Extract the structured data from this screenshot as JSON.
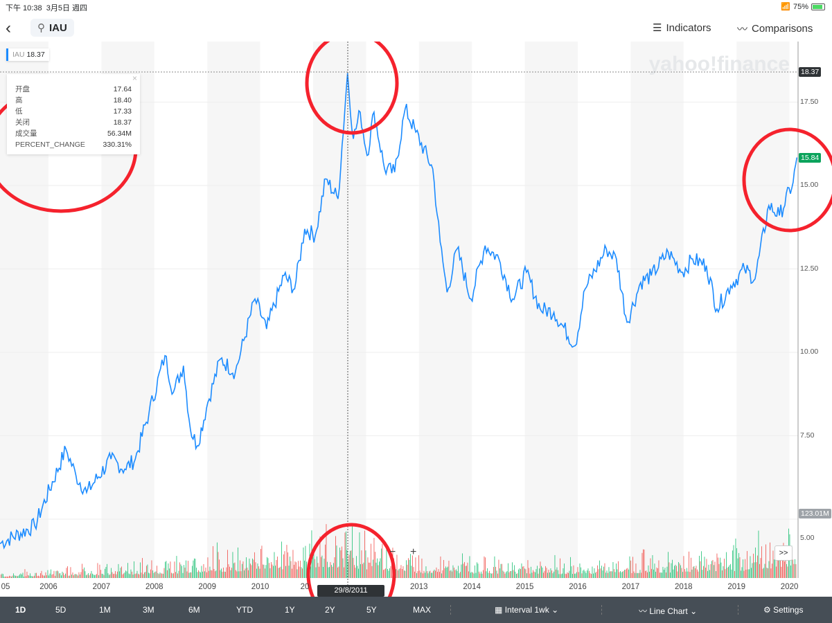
{
  "status": {
    "time": "下午 10:38",
    "date": "3月5日 週四",
    "battery": "75%"
  },
  "header": {
    "symbol": "IAU",
    "indicators": "Indicators",
    "comparisons": "Comparisons"
  },
  "legend": {
    "label": "IAU",
    "value": "18.37"
  },
  "tooltip": {
    "rows": [
      {
        "k": "开盘",
        "v": "17.64"
      },
      {
        "k": "高",
        "v": "18.40"
      },
      {
        "k": "低",
        "v": "17.33"
      },
      {
        "k": "关闭",
        "v": "18.37"
      },
      {
        "k": "成交量",
        "v": "56.34M"
      },
      {
        "k": "PERCENT_CHANGE",
        "v": "330.31%"
      }
    ]
  },
  "watermark": "yahoo!finance",
  "crosshair": {
    "price": "18.37",
    "date": "29/8/2011"
  },
  "last_price": "15.84",
  "volume_tag": "123.01M",
  "zoom": {
    "out": "−",
    "in": "+"
  },
  "more": ">>",
  "colors": {
    "line": "#1b8bff",
    "up": "#0fbc6b",
    "down": "#f0453f",
    "last": "#0ba35c"
  },
  "chart_data": {
    "type": "line",
    "ylim": [
      3.4,
      19.2
    ],
    "xlim": [
      2004.92,
      2020.19
    ],
    "yticks": [
      "5.00",
      "7.50",
      "10.00",
      "12.50",
      "15.00",
      "17.50"
    ],
    "ytick_values": [
      5,
      7.5,
      10,
      12.5,
      15,
      17.5
    ],
    "xticks": [
      "05",
      "2006",
      "2007",
      "2008",
      "2009",
      "2010",
      "20",
      "2013",
      "2014",
      "2015",
      "2016",
      "2017",
      "2018",
      "2019",
      "2020"
    ],
    "xtick_values": [
      2005,
      2006,
      2007,
      2008,
      2009,
      2010,
      2011,
      2013,
      2014,
      2015,
      2016,
      2017,
      2018,
      2019,
      2020
    ],
    "series": [
      {
        "name": "IAU",
        "x": [
          2005.08,
          2005.74,
          2006.33,
          2006.52,
          2006.72,
          2007.18,
          2007.44,
          2007.64,
          2007.9,
          2008.2,
          2008.36,
          2008.55,
          2008.68,
          2008.81,
          2009.01,
          2009.25,
          2009.53,
          2009.9,
          2010.12,
          2010.45,
          2010.65,
          2010.84,
          2011.04,
          2011.24,
          2011.47,
          2011.65,
          2011.76,
          2011.89,
          2012.02,
          2012.15,
          2012.35,
          2012.54,
          2012.74,
          2012.94,
          2013.26,
          2013.4,
          2013.53,
          2013.72,
          2013.98,
          2014.25,
          2014.51,
          2014.77,
          2015.03,
          2015.29,
          2015.55,
          2015.95,
          2016.14,
          2016.54,
          2016.73,
          2016.93,
          2017.19,
          2017.39,
          2017.71,
          2017.98,
          2018.17,
          2018.43,
          2018.63,
          2018.89,
          2019.15,
          2019.35,
          2019.61,
          2019.81,
          2020.07,
          2020.14
        ],
        "y": [
          4.27,
          4.8,
          7.1,
          6.3,
          5.8,
          6.8,
          6.5,
          6.8,
          8.2,
          9.9,
          8.8,
          9.6,
          7.7,
          7.2,
          8.5,
          9.8,
          9.4,
          11.6,
          10.7,
          12.3,
          11.9,
          13.7,
          13.5,
          15.2,
          14.6,
          18.37,
          16.4,
          17.2,
          15.9,
          17.2,
          15.5,
          15.4,
          17.3,
          16.6,
          15.5,
          13.3,
          11.8,
          13.1,
          11.6,
          13.2,
          12.8,
          11.6,
          12.4,
          11.3,
          11.2,
          10.2,
          11.9,
          13.1,
          12.8,
          10.9,
          12.1,
          12.3,
          13.0,
          12.4,
          12.8,
          12.6,
          11.3,
          12.0,
          12.5,
          12.2,
          14.4,
          14.1,
          15.1,
          15.84
        ]
      }
    ],
    "volume_envelope": {
      "years": [
        2005,
        2008,
        2011.6,
        2013,
        2016,
        2019,
        2020.1
      ],
      "relative": [
        0.05,
        0.2,
        0.55,
        0.25,
        0.2,
        0.35,
        0.6
      ]
    }
  },
  "x_axis_labels": [
    "05",
    "2006",
    "2007",
    "2008",
    "2009",
    "2010",
    "20",
    "2013",
    "2014",
    "2015",
    "2016",
    "2017",
    "2018",
    "2019",
    "2020"
  ],
  "toolbar": {
    "ranges": [
      "1D",
      "5D",
      "1M",
      "3M",
      "6M",
      "YTD",
      "1Y",
      "2Y",
      "5Y",
      "MAX"
    ],
    "interval": "Interval 1wk",
    "chart_type": "Line Chart",
    "settings": "Settings"
  }
}
